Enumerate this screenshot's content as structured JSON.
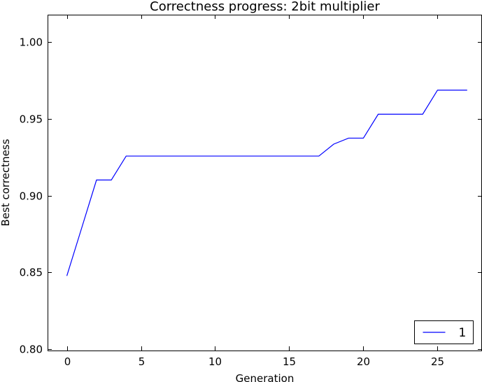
{
  "chart_data": {
    "type": "line",
    "title": "Correctness progress: 2bit multiplier",
    "xlabel": "Generation",
    "ylabel": "Best correctness",
    "xlim": [
      -1.3,
      28.0
    ],
    "ylim": [
      0.799,
      1.018
    ],
    "x_ticks": [
      0,
      5,
      10,
      15,
      20,
      25
    ],
    "x_tick_labels": [
      "0",
      "5",
      "10",
      "15",
      "20",
      "25"
    ],
    "y_ticks": [
      0.8,
      0.85,
      0.9,
      0.95,
      1.0
    ],
    "y_tick_labels": [
      "0.80",
      "0.85",
      "0.90",
      "0.95",
      "1.00"
    ],
    "grid": false,
    "legend_position": "lower-right",
    "series": [
      {
        "name": "1",
        "color": "#0000ff",
        "x": [
          0,
          1,
          2,
          3,
          4,
          5,
          6,
          7,
          8,
          9,
          10,
          11,
          12,
          13,
          14,
          15,
          16,
          17,
          18,
          19,
          20,
          21,
          22,
          23,
          24,
          25,
          26,
          27
        ],
        "y": [
          0.8477,
          0.8789,
          0.9102,
          0.9102,
          0.9258,
          0.9258,
          0.9258,
          0.9258,
          0.9258,
          0.9258,
          0.9258,
          0.9258,
          0.9258,
          0.9258,
          0.9258,
          0.9258,
          0.9258,
          0.9258,
          0.9336,
          0.9375,
          0.9375,
          0.9531,
          0.9531,
          0.9531,
          0.9531,
          0.9688,
          0.9688,
          0.9688
        ]
      }
    ]
  }
}
